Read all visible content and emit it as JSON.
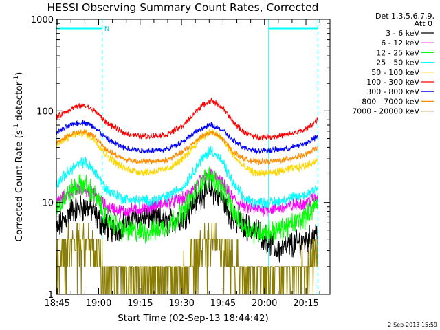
{
  "chart_data": {
    "type": "line",
    "title": "HESSI Observing Summary Count Rates, Corrected",
    "xlabel": "Start Time (02-Sep-13 18:44:42)",
    "ylabel_main": "Corrected Count Rate (s",
    "ylabel_sup1": "-1",
    "ylabel_mid": " detector",
    "ylabel_sup2": "-1",
    "ylabel_end": ")",
    "x_unit": "minutes after 18:44:42",
    "x_range": [
      0,
      99
    ],
    "y_range": [
      1,
      1000
    ],
    "y_scale": "log",
    "x_ticks": [
      "18:45",
      "19:00",
      "19:15",
      "19:30",
      "19:45",
      "20:00",
      "20:15"
    ],
    "y_ticks": [
      "1",
      "10",
      "100",
      "1000"
    ],
    "legend_header": [
      "Det 1,3,5,6,7,9,",
      "Att 0"
    ],
    "legend_position": "right",
    "footer_date": "2-Sep-2013 15:59",
    "night_marks": [
      {
        "start": 0,
        "end": 16.6,
        "label": "N"
      },
      {
        "start": 76.8,
        "end": 94.6,
        "label": ""
      }
    ],
    "series": [
      {
        "name": "3 - 6 keV",
        "color": "#000000",
        "x": [
          0,
          6,
          12,
          16,
          20,
          28,
          34,
          40,
          46,
          52,
          56,
          60,
          64,
          68,
          72,
          76,
          80,
          86,
          92,
          94.5
        ],
        "values": [
          5,
          8.5,
          9,
          6,
          5,
          6.5,
          7,
          6,
          7,
          12,
          14,
          11,
          6.5,
          5.5,
          5,
          4,
          3,
          3.5,
          4,
          5
        ],
        "noise": 0.12
      },
      {
        "name": "6 - 12 keV",
        "color": "#ff00ff",
        "x": [
          0,
          6,
          10,
          14,
          18,
          24,
          30,
          34,
          40,
          46,
          52,
          56,
          60,
          64,
          68,
          72,
          78,
          84,
          90,
          94.5
        ],
        "values": [
          10,
          13.5,
          14,
          12,
          9,
          8,
          8.5,
          9,
          10,
          11,
          17,
          20,
          16,
          11,
          9,
          8.5,
          8.5,
          9,
          10,
          11.5
        ],
        "noise": 0.06
      },
      {
        "name": "12 - 25 keV",
        "color": "#00ff00",
        "x": [
          0,
          6,
          10,
          14,
          18,
          24,
          30,
          34,
          40,
          46,
          52,
          56,
          60,
          64,
          68,
          72,
          78,
          84,
          90,
          94.5
        ],
        "values": [
          9,
          14,
          16,
          12,
          7,
          5,
          4.8,
          4.8,
          5.5,
          8,
          16,
          20,
          14,
          8,
          5.5,
          4.8,
          4.8,
          5.5,
          7,
          10
        ],
        "noise": 0.1
      },
      {
        "name": "25 - 50 keV",
        "color": "#00ffff",
        "x": [
          0,
          6,
          10,
          14,
          18,
          24,
          30,
          34,
          40,
          46,
          52,
          56,
          60,
          64,
          68,
          72,
          78,
          84,
          90,
          94.5
        ],
        "values": [
          16,
          24,
          28,
          22,
          14,
          11,
          10.5,
          10.5,
          11.5,
          15,
          28,
          38,
          28,
          16,
          11,
          10,
          10,
          11,
          12,
          15
        ],
        "noise": 0.05
      },
      {
        "name": "50 - 100 keV",
        "color": "#ffd700",
        "x": [
          0,
          6,
          10,
          14,
          18,
          24,
          30,
          34,
          40,
          46,
          52,
          56,
          60,
          64,
          68,
          72,
          78,
          84,
          90,
          94.5
        ],
        "values": [
          42,
          55,
          58,
          48,
          33,
          24,
          21.5,
          21.5,
          23,
          30,
          50,
          60,
          50,
          33,
          24,
          21,
          21,
          23,
          25,
          29
        ],
        "noise": 0.035
      },
      {
        "name": "100 - 300 keV",
        "color": "#ff0000",
        "x": [
          0,
          6,
          10,
          14,
          18,
          24,
          30,
          34,
          40,
          46,
          52,
          56,
          60,
          64,
          68,
          72,
          78,
          84,
          90,
          94.5
        ],
        "values": [
          85,
          108,
          115,
          100,
          75,
          58,
          53,
          53,
          55,
          70,
          110,
          130,
          110,
          75,
          58,
          52,
          52,
          55,
          62,
          80
        ],
        "noise": 0.025
      },
      {
        "name": "300 - 800 keV",
        "color": "#0000ff",
        "x": [
          0,
          6,
          10,
          14,
          18,
          24,
          30,
          34,
          40,
          46,
          52,
          56,
          60,
          64,
          68,
          72,
          78,
          84,
          90,
          94.5
        ],
        "values": [
          58,
          72,
          75,
          66,
          50,
          40,
          37,
          37,
          38,
          47,
          63,
          70,
          62,
          47,
          40,
          37,
          37,
          39,
          44,
          52
        ],
        "noise": 0.025
      },
      {
        "name": "800 - 7000 keV",
        "color": "#ff8c00",
        "x": [
          0,
          6,
          10,
          14,
          18,
          24,
          30,
          34,
          40,
          46,
          52,
          56,
          60,
          64,
          68,
          72,
          78,
          84,
          90,
          94.5
        ],
        "values": [
          45,
          57,
          60,
          52,
          38,
          30,
          28,
          28,
          29,
          36,
          52,
          58,
          50,
          36,
          30,
          28,
          28,
          30,
          33,
          40
        ],
        "noise": 0.025
      },
      {
        "name": "7000 - 20000 keV",
        "color": "#8b7d00",
        "x": [
          0,
          4,
          8,
          12,
          16,
          20,
          28,
          36,
          44,
          50,
          54,
          58,
          62,
          68,
          74,
          80,
          86,
          90,
          94.5
        ],
        "values": [
          2.2,
          3.5,
          4,
          3.8,
          2.5,
          1.5,
          1.4,
          1.4,
          1.8,
          2.8,
          3.8,
          4,
          3.2,
          2,
          1.4,
          1.5,
          1.8,
          2.3,
          2.8
        ],
        "noise": 0.15,
        "steps": 2
      }
    ]
  }
}
